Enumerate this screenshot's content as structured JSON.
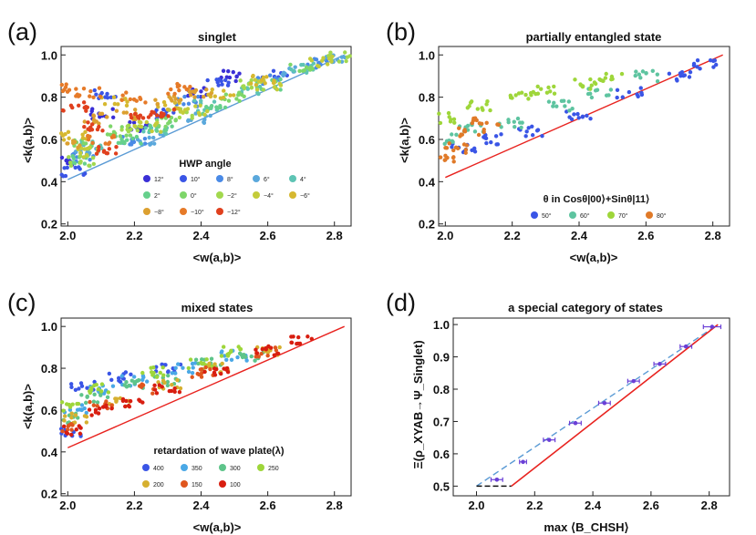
{
  "figure": {
    "panel_labels": [
      "(a)",
      "(b)",
      "(c)",
      "(d)"
    ]
  },
  "chart_data": [
    {
      "type": "scatter",
      "panel": "(a)",
      "title": "singlet",
      "xlabel": "<w(a,b)>",
      "ylabel": "<k(a,b)>",
      "xlim": [
        1.98,
        2.85
      ],
      "ylim": [
        0.19,
        1.04
      ],
      "xticks": [
        "2.0",
        "2.2",
        "2.4",
        "2.6",
        "2.8"
      ],
      "yticks": [
        "0.2",
        "0.4",
        "0.6",
        "0.8",
        "1.0"
      ],
      "reference_line": {
        "x": [
          2.0,
          2.83
        ],
        "y": [
          0.41,
          1.0
        ],
        "color": "#5b9bd5"
      },
      "legend": {
        "title": "HWP angle",
        "entries": [
          {
            "label": "12°",
            "color": "#3a2fd6"
          },
          {
            "label": "10°",
            "color": "#3a55e6"
          },
          {
            "label": "8°",
            "color": "#4a8ae6"
          },
          {
            "label": "6°",
            "color": "#5aa8dc"
          },
          {
            "label": "4°",
            "color": "#5ec4b4"
          },
          {
            "label": "2°",
            "color": "#66d08c"
          },
          {
            "label": "0°",
            "color": "#7ed66a"
          },
          {
            "label": "−2°",
            "color": "#a2d84e"
          },
          {
            "label": "−4°",
            "color": "#c4cc3a"
          },
          {
            "label": "−6°",
            "color": "#d6b830"
          },
          {
            "label": "−8°",
            "color": "#dca030"
          },
          {
            "label": "−10°",
            "color": "#e67a28"
          },
          {
            "label": "−12°",
            "color": "#e0401e"
          }
        ]
      },
      "series": [
        {
          "name": "12°",
          "x": [
            2.0,
            2.1,
            2.22,
            2.38,
            2.5
          ],
          "y": [
            0.5,
            0.72,
            0.66,
            0.82,
            0.9
          ]
        },
        {
          "name": "10°",
          "x": [
            2.02,
            2.12,
            2.3,
            2.45,
            2.62
          ],
          "y": [
            0.45,
            0.82,
            0.72,
            0.86,
            0.9
          ]
        },
        {
          "name": "8°",
          "x": [
            2.04,
            2.2,
            2.36,
            2.6,
            2.75
          ],
          "y": [
            0.52,
            0.6,
            0.78,
            0.88,
            0.96
          ]
        },
        {
          "name": "6°",
          "x": [
            2.06,
            2.25,
            2.4,
            2.68,
            2.8
          ],
          "y": [
            0.55,
            0.6,
            0.7,
            0.92,
            0.98
          ]
        },
        {
          "name": "4°",
          "x": [
            2.08,
            2.26,
            2.42,
            2.56,
            2.7
          ],
          "y": [
            0.58,
            0.64,
            0.76,
            0.84,
            0.94
          ]
        },
        {
          "name": "2°",
          "x": [
            2.03,
            2.18,
            2.28,
            2.44,
            2.6
          ],
          "y": [
            0.5,
            0.6,
            0.66,
            0.74,
            0.86
          ]
        },
        {
          "name": "0°",
          "x": [
            2.05,
            2.15,
            2.3,
            2.5,
            2.7
          ],
          "y": [
            0.58,
            0.64,
            0.68,
            0.8,
            0.94
          ]
        },
        {
          "name": "−2°",
          "x": [
            2.04,
            2.2,
            2.34,
            2.55,
            2.82
          ],
          "y": [
            0.5,
            0.66,
            0.72,
            0.86,
            0.99
          ]
        },
        {
          "name": "−4°",
          "x": [
            2.06,
            2.24,
            2.38,
            2.6,
            2.76
          ],
          "y": [
            0.54,
            0.66,
            0.74,
            0.86,
            0.97
          ]
        },
        {
          "name": "−6°",
          "x": [
            2.02,
            2.14,
            2.3,
            2.46,
            2.58
          ],
          "y": [
            0.62,
            0.78,
            0.76,
            0.82,
            0.88
          ]
        },
        {
          "name": "−8°",
          "x": [
            2.0,
            2.08,
            2.18,
            2.3,
            2.4
          ],
          "y": [
            0.58,
            0.7,
            0.72,
            0.78,
            0.82
          ]
        },
        {
          "name": "−10°",
          "x": [
            2.01,
            2.06,
            2.1,
            2.2,
            2.34
          ],
          "y": [
            0.84,
            0.82,
            0.6,
            0.8,
            0.84
          ]
        },
        {
          "name": "−12°",
          "x": [
            2.02,
            2.08,
            2.12,
            2.22,
            2.28
          ],
          "y": [
            0.76,
            0.66,
            0.54,
            0.72,
            0.72
          ]
        }
      ]
    },
    {
      "type": "scatter",
      "panel": "(b)",
      "title": "partially entangled state",
      "xlabel": "<w(a,b)>",
      "ylabel": "<k(a,b)>",
      "xlim": [
        1.98,
        2.85
      ],
      "ylim": [
        0.19,
        1.04
      ],
      "xticks": [
        "2.0",
        "2.2",
        "2.4",
        "2.6",
        "2.8"
      ],
      "yticks": [
        "0.2",
        "0.4",
        "0.6",
        "0.8",
        "1.0"
      ],
      "reference_line": {
        "x": [
          2.0,
          2.83
        ],
        "y": [
          0.42,
          1.0
        ],
        "color": "#e8231f"
      },
      "legend": {
        "title": "θ in Cosθ|00⟩+Sinθ|11⟩",
        "entries": [
          {
            "label": "50°",
            "color": "#3a55e6"
          },
          {
            "label": "60°",
            "color": "#5ec4a0"
          },
          {
            "label": "70°",
            "color": "#9ed63a"
          },
          {
            "label": "80°",
            "color": "#e07a28"
          }
        ]
      },
      "series": [
        {
          "name": "50°",
          "x": [
            2.05,
            2.15,
            2.25,
            2.4,
            2.55,
            2.7,
            2.78
          ],
          "y": [
            0.56,
            0.6,
            0.64,
            0.72,
            0.82,
            0.9,
            0.96
          ]
        },
        {
          "name": "60°",
          "x": [
            2.0,
            2.08,
            2.2,
            2.34,
            2.46,
            2.6
          ],
          "y": [
            0.6,
            0.66,
            0.68,
            0.76,
            0.82,
            0.9
          ]
        },
        {
          "name": "70°",
          "x": [
            2.0,
            2.1,
            2.22,
            2.3,
            2.42,
            2.5
          ],
          "y": [
            0.7,
            0.76,
            0.8,
            0.84,
            0.86,
            0.9
          ]
        },
        {
          "name": "80°",
          "x": [
            2.0,
            2.04,
            2.08,
            2.12
          ],
          "y": [
            0.5,
            0.56,
            0.64,
            0.68
          ]
        }
      ]
    },
    {
      "type": "scatter",
      "panel": "(c)",
      "title": "mixed states",
      "xlabel": "<w(a,b)>",
      "ylabel": "<k(a,b)>",
      "xlim": [
        1.98,
        2.85
      ],
      "ylim": [
        0.19,
        1.04
      ],
      "xticks": [
        "2.0",
        "2.2",
        "2.4",
        "2.6",
        "2.8"
      ],
      "yticks": [
        "0.2",
        "0.4",
        "0.6",
        "0.8",
        "1.0"
      ],
      "reference_line": {
        "x": [
          2.0,
          2.83
        ],
        "y": [
          0.42,
          1.0
        ],
        "color": "#e8231f"
      },
      "legend": {
        "title": "retardation of wave plate(λ)",
        "entries": [
          {
            "label": "400",
            "color": "#3a55e6"
          },
          {
            "label": "350",
            "color": "#4aa8e6"
          },
          {
            "label": "300",
            "color": "#5ec48a"
          },
          {
            "label": "250",
            "color": "#9ed63a"
          },
          {
            "label": "200",
            "color": "#d6b030"
          },
          {
            "label": "150",
            "color": "#e0561e"
          },
          {
            "label": "100",
            "color": "#d81e10"
          }
        ]
      },
      "series": [
        {
          "name": "400",
          "x": [
            2.0,
            2.05,
            2.15,
            2.3
          ],
          "y": [
            0.5,
            0.72,
            0.76,
            0.8
          ]
        },
        {
          "name": "350",
          "x": [
            2.02,
            2.1,
            2.2,
            2.35,
            2.5
          ],
          "y": [
            0.6,
            0.7,
            0.74,
            0.8,
            0.86
          ]
        },
        {
          "name": "300",
          "x": [
            2.0,
            2.08,
            2.2,
            2.3,
            2.42,
            2.55
          ],
          "y": [
            0.56,
            0.66,
            0.72,
            0.74,
            0.82,
            0.86
          ]
        },
        {
          "name": "250",
          "x": [
            2.0,
            2.1,
            2.25,
            2.4,
            2.5
          ],
          "y": [
            0.62,
            0.7,
            0.78,
            0.82,
            0.88
          ]
        },
        {
          "name": "200",
          "x": [
            2.02,
            2.15,
            2.3,
            2.45,
            2.6
          ],
          "y": [
            0.56,
            0.64,
            0.72,
            0.8,
            0.88
          ]
        },
        {
          "name": "150",
          "x": [
            2.0,
            2.1,
            2.25,
            2.4,
            2.6
          ],
          "y": [
            0.52,
            0.62,
            0.7,
            0.78,
            0.88
          ]
        },
        {
          "name": "100",
          "x": [
            2.0,
            2.1,
            2.2,
            2.3,
            2.45,
            2.6,
            2.7
          ],
          "y": [
            0.5,
            0.6,
            0.64,
            0.7,
            0.78,
            0.88,
            0.94
          ]
        }
      ]
    },
    {
      "type": "scatter",
      "panel": "(d)",
      "title": "a special category of states",
      "xlabel": "max ⟨B_CHSH⟩",
      "ylabel": "Ξ(ρ_XYAB→Ψ_Singlet)",
      "xlim": [
        1.92,
        2.87
      ],
      "ylim": [
        0.47,
        1.02
      ],
      "xticks": [
        "2.0",
        "2.2",
        "2.4",
        "2.6",
        "2.8"
      ],
      "yticks": [
        "0.5",
        "0.6",
        "0.7",
        "0.8",
        "0.9",
        "1.0"
      ],
      "points": {
        "x": [
          2.07,
          2.16,
          2.25,
          2.34,
          2.44,
          2.54,
          2.63,
          2.72,
          2.81
        ],
        "y": [
          0.52,
          0.575,
          0.643,
          0.695,
          0.757,
          0.825,
          0.878,
          0.932,
          0.993
        ],
        "xerr": [
          0.02,
          0.012,
          0.02,
          0.02,
          0.02,
          0.02,
          0.02,
          0.02,
          0.03
        ],
        "color": "#6a3fd6"
      },
      "red_line": {
        "x": [
          2.12,
          2.83
        ],
        "y": [
          0.5,
          1.0
        ],
        "color": "#e8231f"
      },
      "dashed_black": {
        "x": [
          2.0,
          2.12
        ],
        "y": [
          0.5,
          0.5
        ],
        "color": "#111111"
      },
      "dashed_blue": {
        "x": [
          2.0,
          2.83
        ],
        "y": [
          0.5,
          1.0
        ],
        "color": "#5b9bd5"
      }
    }
  ]
}
